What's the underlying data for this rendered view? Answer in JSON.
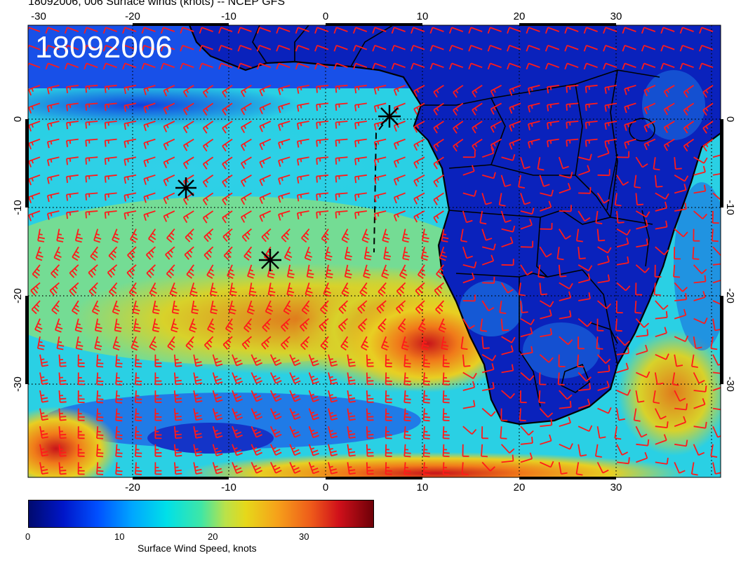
{
  "title": "18092006, 006 Surface winds (knots) -- NCEP GFS",
  "stamp": "18092006",
  "colors": {
    "barb": "#ff1a1a",
    "coast": "#000000",
    "grid": "#000000",
    "land_low": "#0a1eb4",
    "ocean_mid": "#28c8e6",
    "ocean_high": "#e6c81e",
    "jet_core": "#d2281e"
  },
  "x_axis": {
    "label_values": [
      "-20",
      "-10",
      "0",
      "10",
      "20",
      "30"
    ],
    "top_extra": "-30"
  },
  "y_axis": {
    "label_values": [
      "0",
      "-10",
      "-20",
      "-30"
    ]
  },
  "markers": [
    "asterisk",
    "asterisk",
    "asterisk"
  ],
  "colorbar": {
    "title": "Surface Wind Speed, knots",
    "labels": [
      "0",
      "10",
      "20",
      "30"
    ]
  }
}
